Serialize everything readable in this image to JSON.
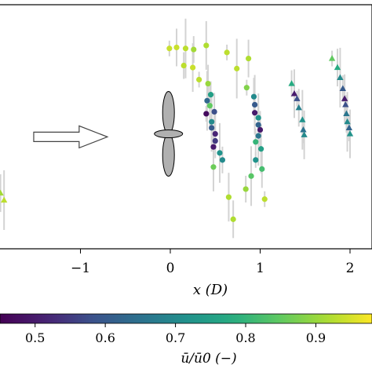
{
  "chart_data": {
    "type": "scatter",
    "xlabel": "x (D)",
    "x_ticks": [
      -1,
      0,
      1,
      2
    ],
    "x_tick_labels": [
      "−1",
      "0",
      "1",
      "2"
    ],
    "xlim": [
      -2.02,
      2.27
    ],
    "ylim": [
      -1.0,
      1.0
    ],
    "grid": false,
    "colorbar": {
      "label": "ū/ū0 (−)",
      "ticks": [
        0.5,
        0.6,
        0.7,
        0.8,
        0.9
      ],
      "tick_labels": [
        "0.5",
        "0.6",
        "0.7",
        "0.8",
        "0.9"
      ],
      "range": [
        0.45,
        0.98
      ],
      "colormap": "viridis"
    },
    "series": [
      {
        "marker": "circle",
        "points": [
          {
            "x": -0.01,
            "y": 0.83,
            "v": 0.94
          },
          {
            "x": 0.07,
            "y": 0.84,
            "v": 0.94
          },
          {
            "x": 0.17,
            "y": 0.83,
            "v": 0.93
          },
          {
            "x": 0.26,
            "y": 0.82,
            "v": 0.91
          },
          {
            "x": 0.4,
            "y": 0.86,
            "v": 0.92
          },
          {
            "x": 0.63,
            "y": 0.79,
            "v": 0.93
          },
          {
            "x": 0.87,
            "y": 0.73,
            "v": 0.92
          },
          {
            "x": 0.74,
            "y": 0.63,
            "v": 0.93
          },
          {
            "x": 0.15,
            "y": 0.66,
            "v": 0.93
          },
          {
            "x": 0.25,
            "y": 0.64,
            "v": 0.94
          },
          {
            "x": 0.32,
            "y": 0.52,
            "v": 0.93
          },
          {
            "x": 0.42,
            "y": 0.48,
            "v": 0.9
          },
          {
            "x": 0.41,
            "y": 0.31,
            "v": 0.63
          },
          {
            "x": 0.45,
            "y": 0.37,
            "v": 0.75
          },
          {
            "x": 0.44,
            "y": 0.26,
            "v": 0.85
          },
          {
            "x": 0.4,
            "y": 0.18,
            "v": 0.47
          },
          {
            "x": 0.49,
            "y": 0.2,
            "v": 0.58
          },
          {
            "x": 0.46,
            "y": 0.1,
            "v": 0.7
          },
          {
            "x": 0.46,
            "y": 0.04,
            "v": 0.6
          },
          {
            "x": 0.5,
            "y": -0.02,
            "v": 0.52
          },
          {
            "x": 0.5,
            "y": -0.09,
            "v": 0.55
          },
          {
            "x": 0.48,
            "y": -0.15,
            "v": 0.5
          },
          {
            "x": 0.55,
            "y": -0.21,
            "v": 0.72
          },
          {
            "x": 0.58,
            "y": -0.28,
            "v": 0.7
          },
          {
            "x": 0.48,
            "y": -0.35,
            "v": 0.86
          },
          {
            "x": 0.85,
            "y": 0.44,
            "v": 0.88
          },
          {
            "x": 0.93,
            "y": 0.35,
            "v": 0.7
          },
          {
            "x": 0.94,
            "y": 0.27,
            "v": 0.6
          },
          {
            "x": 0.94,
            "y": 0.19,
            "v": 0.5
          },
          {
            "x": 0.98,
            "y": 0.14,
            "v": 0.72
          },
          {
            "x": 0.98,
            "y": 0.07,
            "v": 0.62
          },
          {
            "x": 1.0,
            "y": 0.02,
            "v": 0.5
          },
          {
            "x": 0.98,
            "y": -0.04,
            "v": 0.66
          },
          {
            "x": 0.95,
            "y": -0.1,
            "v": 0.8
          },
          {
            "x": 1.01,
            "y": -0.17,
            "v": 0.75
          },
          {
            "x": 0.95,
            "y": -0.28,
            "v": 0.72
          },
          {
            "x": 1.02,
            "y": -0.37,
            "v": 0.82
          },
          {
            "x": 0.9,
            "y": -0.44,
            "v": 0.84
          },
          {
            "x": 0.84,
            "y": -0.57,
            "v": 0.9
          },
          {
            "x": 0.65,
            "y": -0.65,
            "v": 0.92
          },
          {
            "x": 1.05,
            "y": -0.67,
            "v": 0.93
          },
          {
            "x": 0.7,
            "y": -0.87,
            "v": 0.92
          }
        ]
      },
      {
        "marker": "triangle",
        "points": [
          {
            "x": -1.99,
            "y": -0.41,
            "v": 0.93
          },
          {
            "x": -1.89,
            "y": -0.61,
            "v": 0.91
          },
          {
            "x": -1.85,
            "y": -0.68,
            "v": 0.93
          },
          {
            "x": 1.35,
            "y": 0.48,
            "v": 0.78
          },
          {
            "x": 1.38,
            "y": 0.38,
            "v": 0.5
          },
          {
            "x": 1.41,
            "y": 0.33,
            "v": 0.58
          },
          {
            "x": 1.43,
            "y": 0.24,
            "v": 0.68
          },
          {
            "x": 1.47,
            "y": 0.12,
            "v": 0.72
          },
          {
            "x": 1.48,
            "y": 0.02,
            "v": 0.65
          },
          {
            "x": 1.49,
            "y": -0.03,
            "v": 0.7
          },
          {
            "x": 1.8,
            "y": 0.73,
            "v": 0.85
          },
          {
            "x": 1.86,
            "y": 0.64,
            "v": 0.78
          },
          {
            "x": 1.89,
            "y": 0.54,
            "v": 0.7
          },
          {
            "x": 1.92,
            "y": 0.43,
            "v": 0.6
          },
          {
            "x": 1.94,
            "y": 0.33,
            "v": 0.5
          },
          {
            "x": 1.95,
            "y": 0.27,
            "v": 0.58
          },
          {
            "x": 1.96,
            "y": 0.18,
            "v": 0.66
          },
          {
            "x": 1.97,
            "y": 0.1,
            "v": 0.7
          },
          {
            "x": 1.99,
            "y": 0.04,
            "v": 0.62
          },
          {
            "x": 2.0,
            "y": -0.02,
            "v": 0.72
          }
        ]
      }
    ],
    "annotations": [
      {
        "name": "turbine-rotor",
        "x": -0.02,
        "y": -0.02
      },
      {
        "name": "inflow-arrow",
        "x_from": -1.52,
        "x_to": -0.7,
        "y": -0.05
      }
    ]
  }
}
